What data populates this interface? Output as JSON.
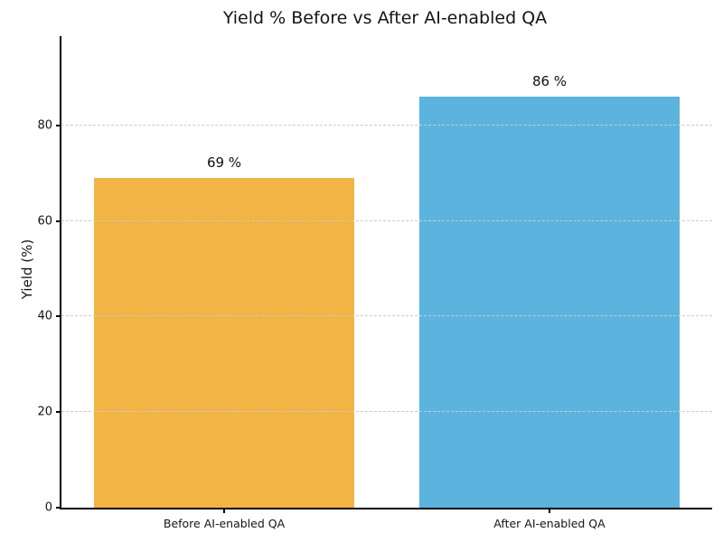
{
  "chart_data": {
    "type": "bar",
    "title": "Yield % Before vs After AI-enabled QA",
    "xlabel": "",
    "ylabel": "Yield (%)",
    "categories": [
      "Before AI-enabled QA",
      "After AI-enabled QA"
    ],
    "values": [
      69,
      86
    ],
    "value_labels": [
      "69 %",
      "86 %"
    ],
    "bar_colors": [
      "#F2B445",
      "#5BB3DE"
    ],
    "yticks": [
      0,
      20,
      40,
      60,
      80
    ],
    "ylim": [
      0,
      98.7
    ],
    "grid": {
      "axis": "y",
      "style": "dashed",
      "color": "#cccccc",
      "drawn_above_bars": true
    },
    "legend": "none"
  }
}
